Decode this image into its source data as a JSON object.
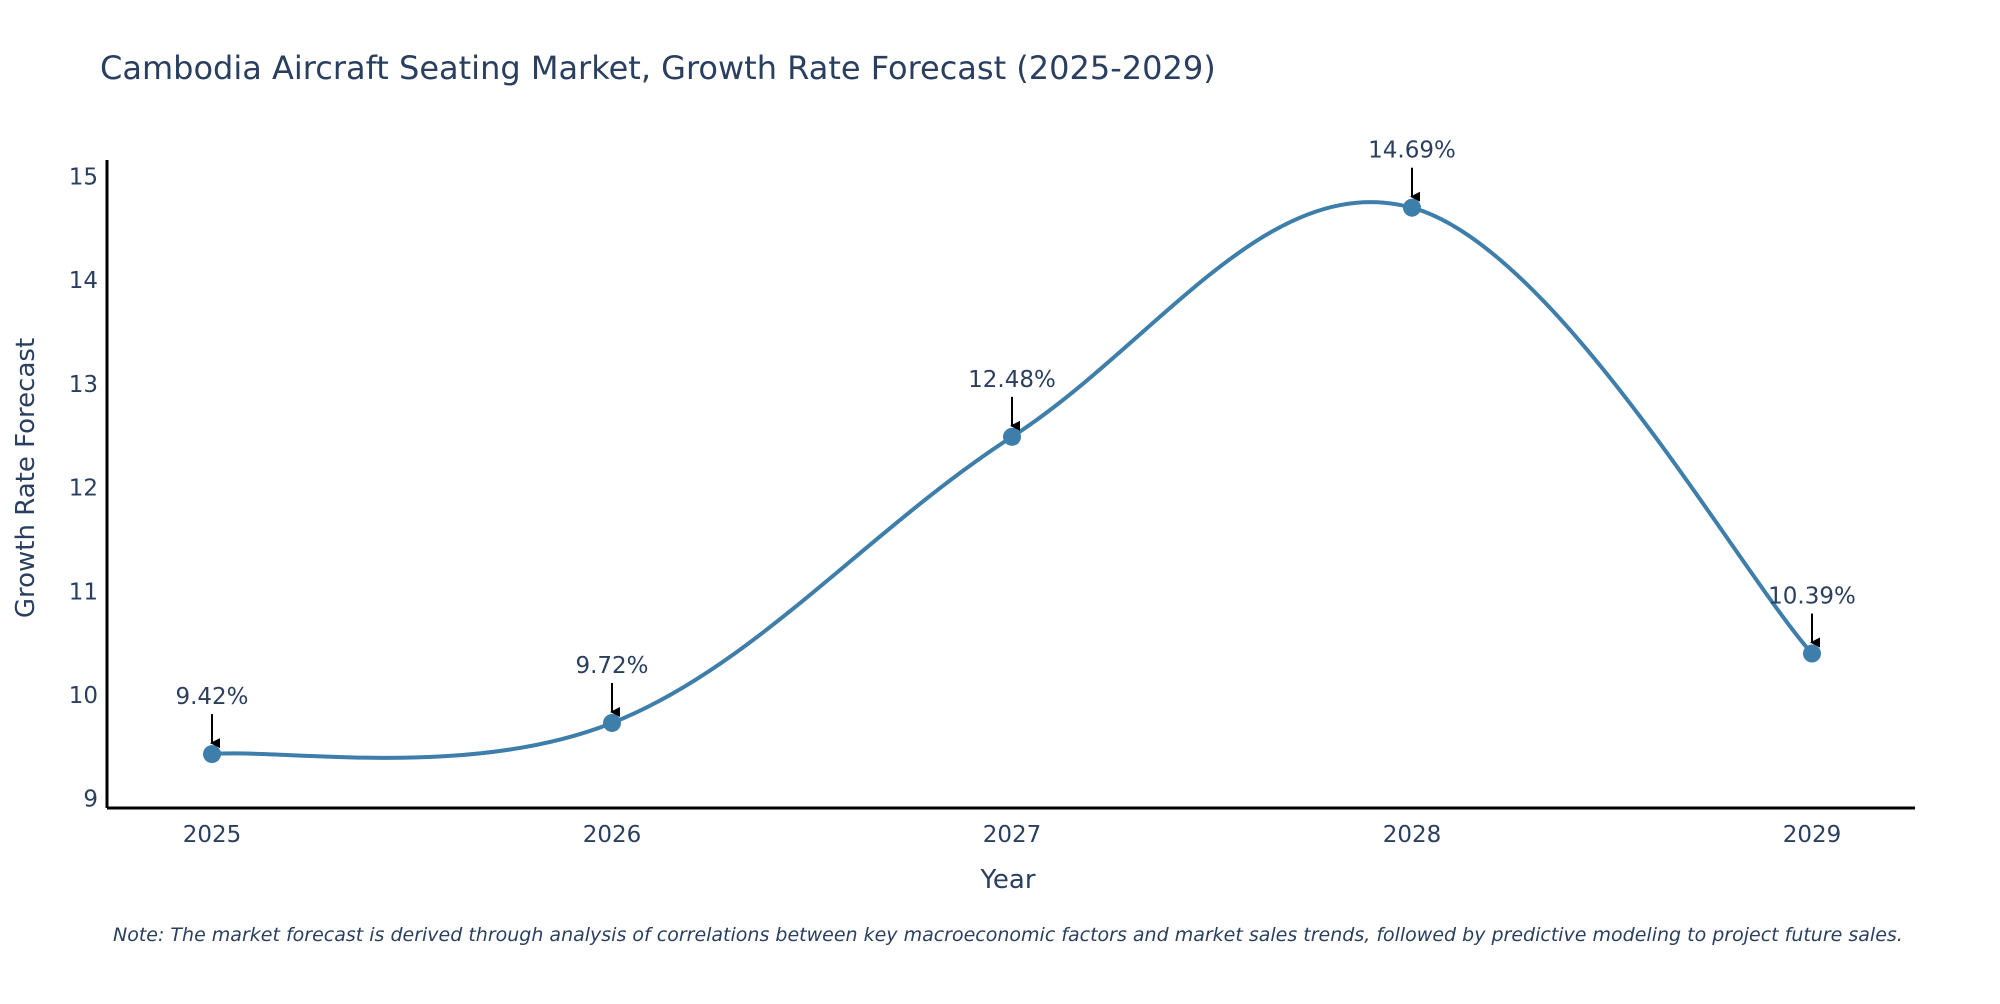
{
  "chart_data": {
    "type": "line",
    "title": "Cambodia Aircraft Seating Market, Growth Rate Forecast (2025-2029)",
    "xlabel": "Year",
    "ylabel": "Growth Rate Forecast",
    "categories": [
      "2025",
      "2026",
      "2027",
      "2028",
      "2029"
    ],
    "series": [
      {
        "name": "Growth Rate Forecast",
        "values": [
          9.42,
          9.72,
          12.48,
          14.69,
          10.39
        ],
        "labels": [
          "9.42%",
          "9.72%",
          "12.48%",
          "14.69%",
          "10.39%"
        ],
        "color": "#3d7eaa"
      }
    ],
    "ylim": [
      8.9,
      15.15
    ],
    "yticks": [
      9,
      10,
      11,
      12,
      13,
      14,
      15
    ],
    "grid": false,
    "smoothing": "spline",
    "annotation_arrows": true,
    "axis_color": "#000000",
    "text_color": "#2a3f5f"
  },
  "note": "Note: The market forecast is derived through analysis of correlations between key macroeconomic factors and market sales trends, followed by predictive modeling to project future sales."
}
